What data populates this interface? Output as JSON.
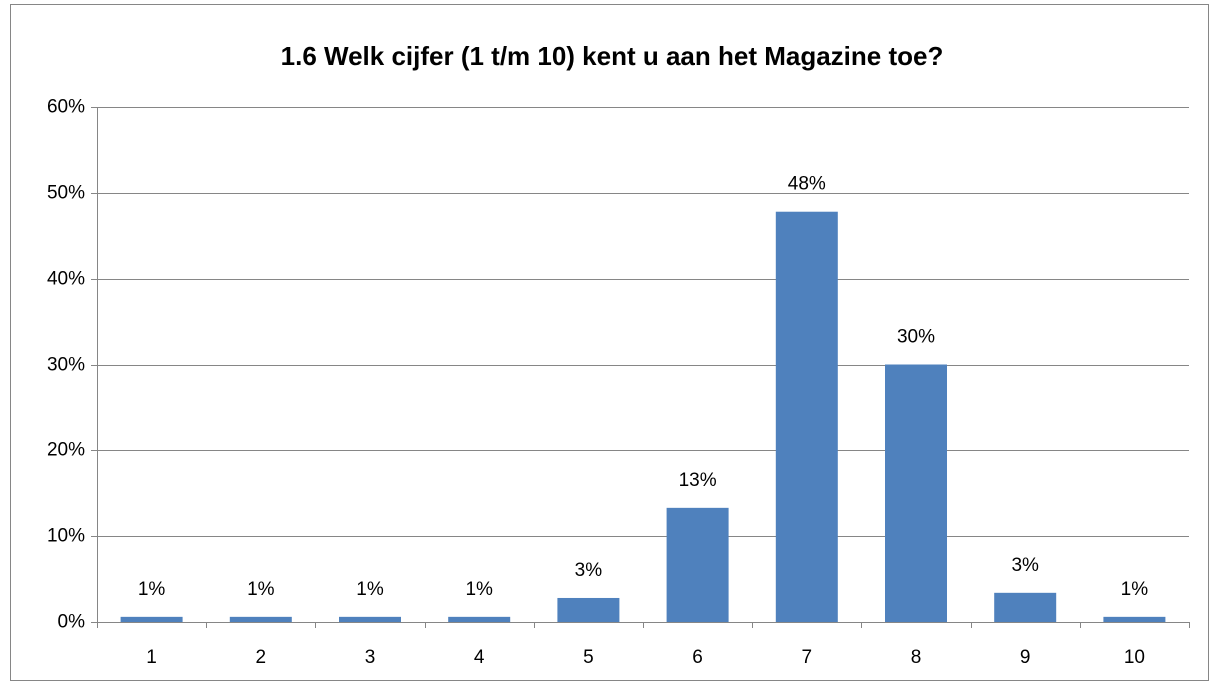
{
  "chart_data": {
    "type": "bar",
    "title": "1.6 Welk cijfer (1 t/m 10) kent u aan het Magazine toe?",
    "categories": [
      "1",
      "2",
      "3",
      "4",
      "5",
      "6",
      "7",
      "8",
      "9",
      "10"
    ],
    "values": [
      0.6,
      0.6,
      0.6,
      0.6,
      2.8,
      13.3,
      47.8,
      30.0,
      3.4,
      0.6
    ],
    "value_labels": [
      "1%",
      "1%",
      "1%",
      "1%",
      "3%",
      "13%",
      "48%",
      "30%",
      "3%",
      "1%"
    ],
    "color": "#4f81bd",
    "ylim": [
      0,
      60
    ],
    "yticks": [
      {
        "value": 0,
        "label": "0%"
      },
      {
        "value": 10,
        "label": "10%"
      },
      {
        "value": 20,
        "label": "20%"
      },
      {
        "value": 30,
        "label": "30%"
      },
      {
        "value": 40,
        "label": "40%"
      },
      {
        "value": 50,
        "label": "50%"
      },
      {
        "value": 60,
        "label": "60%"
      }
    ],
    "grid": true
  }
}
